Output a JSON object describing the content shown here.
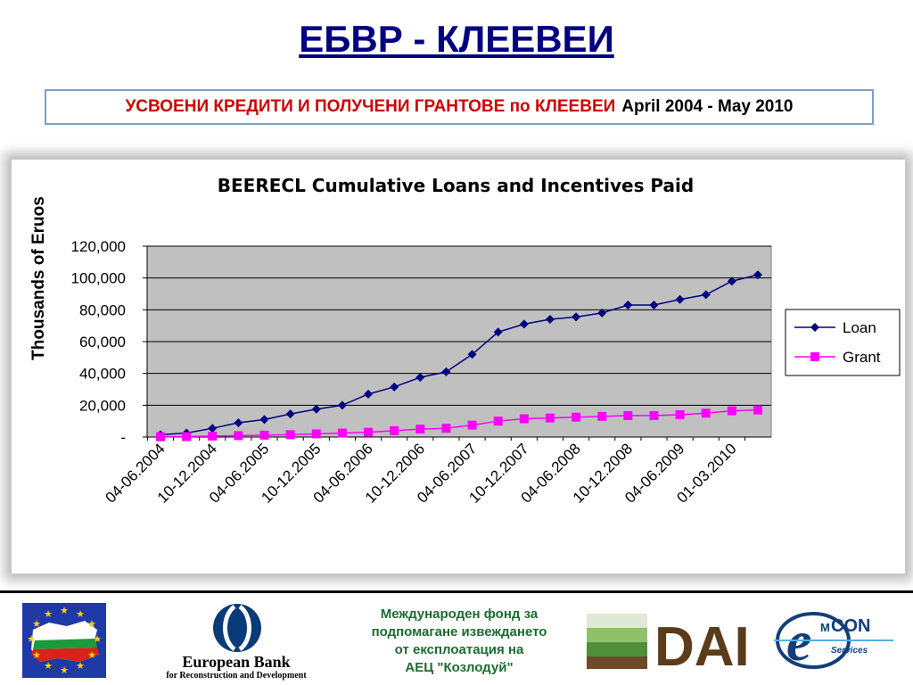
{
  "header": {
    "title": "ЕБВР - КЛЕЕВЕИ",
    "subtitle_red": "УСВОЕНИ КРЕДИТИ И ПОЛУЧЕНИ ГРАНТОВЕ по КЛЕЕВЕИ",
    "subtitle_black": "April 2004 - May 2010"
  },
  "chart_data": {
    "type": "line",
    "title": "BEERECL Cumulative Loans and Incentives Paid",
    "xlabel": "",
    "ylabel": "Thousands of Eruos",
    "ylim": [
      0,
      120000
    ],
    "y_ticks": [
      "-",
      "20,000",
      "40,000",
      "60,000",
      "80,000",
      "100,000",
      "120,000"
    ],
    "y_tick_values": [
      0,
      20000,
      40000,
      60000,
      80000,
      100000,
      120000
    ],
    "categories_labeled": [
      "04-06.2004",
      "10-12.2004",
      "04-06.2005",
      "10-12.2005",
      "04-06.2006",
      "10-12.2006",
      "04-06.2007",
      "10-12.2007",
      "04-06.2008",
      "10-12.2008",
      "04-06.2009",
      "01-03.2010"
    ],
    "grid": true,
    "legend_position": "right",
    "series": [
      {
        "name": "Loan",
        "color": "#000080",
        "marker": "diamond",
        "values": [
          1500,
          2500,
          5500,
          9000,
          11000,
          14500,
          17500,
          20000,
          27000,
          31500,
          37500,
          41000,
          52000,
          66000,
          71000,
          74000,
          75500,
          78000,
          83000,
          83000,
          86500,
          89500,
          98000,
          102000
        ]
      },
      {
        "name": "Grant",
        "color": "#ff00ff",
        "marker": "square",
        "values": [
          200,
          300,
          600,
          900,
          1200,
          1500,
          2000,
          2500,
          3000,
          4000,
          5000,
          5500,
          7500,
          10000,
          11500,
          12000,
          12500,
          13000,
          13500,
          13500,
          14000,
          15000,
          16500,
          17000
        ]
      }
    ]
  },
  "footer": {
    "fund_lines": [
      "Международен фонд за",
      "подпомагане  извеждането",
      "от експлоатация на",
      "АЕЦ \"Козлодуй\""
    ],
    "ebrd_name": "European Bank",
    "ebrd_sub": "for Reconstruction and Development",
    "dai_text": "DAI",
    "emcon_em": "M",
    "emcon_con": "CON",
    "emcon_services": "Services"
  },
  "colors": {
    "title": "#000080",
    "subtitle_red": "#cc0000",
    "plot_bg": "#c0c0c0",
    "fund_text": "#1d6b2e"
  },
  "icons": [
    "eu-flag-bulgaria-map-icon",
    "ebrd-logo-icon",
    "dai-logo-icon",
    "emcon-logo-icon"
  ]
}
